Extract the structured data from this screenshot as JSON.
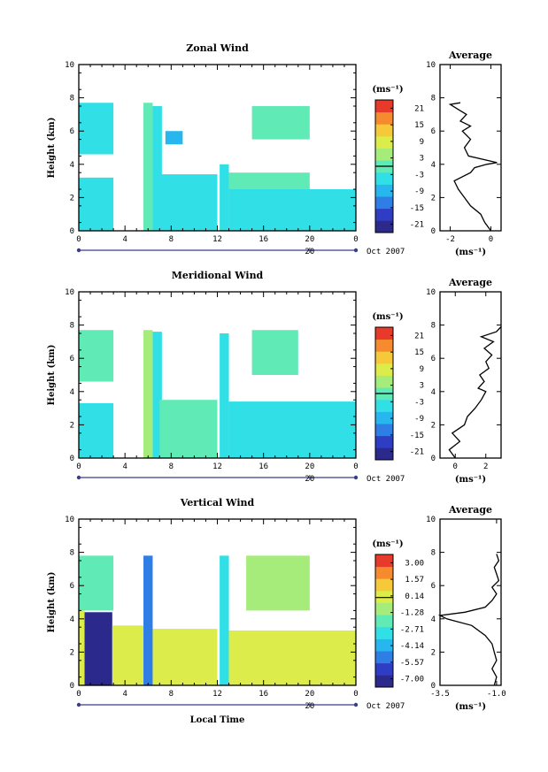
{
  "chart_data": [
    {
      "type": "heatmap",
      "title": "Zonal Wind",
      "ylabel": "Height (km)",
      "units": "(ms⁻¹)",
      "xlim": [
        0,
        24
      ],
      "ylim": [
        0,
        10
      ],
      "x_ticks": [
        "0",
        "4",
        "8",
        "12",
        "16",
        "20",
        "0"
      ],
      "y_ticks": [
        "0",
        "2",
        "4",
        "6",
        "8",
        "10"
      ],
      "date_tick": "20",
      "date_label": "Oct 2007",
      "colorbar_ticks": [
        "21",
        "15",
        "9",
        "3",
        "-3",
        "-9",
        "-15",
        "-21"
      ],
      "colorbar_range": [
        -24,
        24
      ],
      "blocks": [
        {
          "x0": 0,
          "x1": 3,
          "y0": 4.6,
          "y1": 7.7,
          "value": -4
        },
        {
          "x0": 0,
          "x1": 3,
          "y0": 0,
          "y1": 3.2,
          "value": -6
        },
        {
          "x0": 5.6,
          "x1": 6.4,
          "y0": 0,
          "y1": 7.7,
          "value": 1
        },
        {
          "x0": 6.4,
          "x1": 7.2,
          "y0": 0,
          "y1": 7.5,
          "value": -6
        },
        {
          "x0": 7,
          "x1": 12,
          "y0": 0,
          "y1": 3.4,
          "value": -5
        },
        {
          "x0": 7.5,
          "x1": 9,
          "y0": 5.2,
          "y1": 6,
          "value": -8
        },
        {
          "x0": 12.2,
          "x1": 13,
          "y0": 0,
          "y1": 4,
          "value": -4
        },
        {
          "x0": 13,
          "x1": 24,
          "y0": 0,
          "y1": 2.5,
          "value": -5
        },
        {
          "x0": 13,
          "x1": 20,
          "y0": 2.5,
          "y1": 3.5,
          "value": -1
        },
        {
          "x0": 15,
          "x1": 20,
          "y0": 5.5,
          "y1": 7.5,
          "value": -2
        }
      ],
      "average": {
        "title": "Average",
        "xlabel": "(ms⁻¹)",
        "xlim": [
          -2.5,
          0.5
        ],
        "x_ticks": [
          "-2",
          "0"
        ],
        "y_ticks": [
          "0",
          "2",
          "4",
          "6",
          "8",
          "10"
        ],
        "x": [
          0.0,
          -0.3,
          -0.5,
          -1.0,
          -1.3,
          -1.6,
          -1.8,
          -1.0,
          -0.8,
          -0.2,
          0.3,
          -1.1,
          -1.3,
          -1.0,
          -1.4,
          -1.0,
          -1.5,
          -1.2,
          -1.6,
          -2.0,
          -1.5
        ],
        "y": [
          0.0,
          0.5,
          1.0,
          1.5,
          2.0,
          2.5,
          3.0,
          3.5,
          3.8,
          4.0,
          4.1,
          4.5,
          5.0,
          5.5,
          6.0,
          6.3,
          6.6,
          7.0,
          7.3,
          7.6,
          7.7
        ]
      }
    },
    {
      "type": "heatmap",
      "title": "Meridional Wind",
      "ylabel": "Height (km)",
      "units": "(ms⁻¹)",
      "xlim": [
        0,
        24
      ],
      "ylim": [
        0,
        10
      ],
      "x_ticks": [
        "0",
        "4",
        "8",
        "12",
        "16",
        "20",
        "0"
      ],
      "y_ticks": [
        "0",
        "2",
        "4",
        "6",
        "8",
        "10"
      ],
      "date_tick": "20",
      "date_label": "Oct 2007",
      "colorbar_ticks": [
        "21",
        "15",
        "9",
        "3",
        "-3",
        "-9",
        "-15",
        "-21"
      ],
      "colorbar_range": [
        -24,
        24
      ],
      "blocks": [
        {
          "x0": 0,
          "x1": 3,
          "y0": 4.6,
          "y1": 7.7,
          "value": 2
        },
        {
          "x0": 0,
          "x1": 3,
          "y0": 0,
          "y1": 3.3,
          "value": -5
        },
        {
          "x0": 5.6,
          "x1": 6.4,
          "y0": 0,
          "y1": 7.7,
          "value": 6
        },
        {
          "x0": 6.4,
          "x1": 7.2,
          "y0": 0,
          "y1": 7.6,
          "value": -3
        },
        {
          "x0": 7,
          "x1": 12,
          "y0": 0,
          "y1": 3.5,
          "value": -1
        },
        {
          "x0": 12.2,
          "x1": 13,
          "y0": 0,
          "y1": 7.5,
          "value": -6
        },
        {
          "x0": 13,
          "x1": 24,
          "y0": 0,
          "y1": 3.4,
          "value": -6
        },
        {
          "x0": 15,
          "x1": 19,
          "y0": 5,
          "y1": 7.7,
          "value": 2
        }
      ],
      "average": {
        "title": "Average",
        "xlabel": "(ms⁻¹)",
        "xlim": [
          -1,
          3
        ],
        "x_ticks": [
          "0",
          "2"
        ],
        "y_ticks": [
          "0",
          "2",
          "4",
          "6",
          "8",
          "10"
        ],
        "x": [
          0.0,
          -0.4,
          0.3,
          -0.2,
          0.6,
          0.8,
          1.3,
          1.7,
          2.0,
          1.5,
          1.9,
          1.6,
          2.2,
          2.0,
          2.4,
          1.9,
          2.5,
          1.7,
          2.7,
          3.0
        ],
        "y": [
          0.0,
          0.5,
          1.0,
          1.5,
          2.0,
          2.5,
          3.0,
          3.5,
          4.0,
          4.2,
          4.6,
          5.0,
          5.4,
          5.8,
          6.2,
          6.6,
          7.0,
          7.3,
          7.6,
          7.9
        ]
      }
    },
    {
      "type": "heatmap",
      "title": "Vertical Wind",
      "ylabel": "Height (km)",
      "xlabel": "Local Time",
      "units": "(ms⁻¹)",
      "xlim": [
        0,
        24
      ],
      "ylim": [
        0,
        10
      ],
      "x_ticks": [
        "0",
        "4",
        "8",
        "12",
        "16",
        "20",
        "0"
      ],
      "y_ticks": [
        "0",
        "2",
        "4",
        "6",
        "8",
        "10"
      ],
      "date_tick": "20",
      "date_label": "Oct 2007",
      "colorbar_ticks": [
        "3.00",
        "1.57",
        "0.14",
        "-1.28",
        "-2.71",
        "-4.14",
        "-5.57",
        "-7.00"
      ],
      "colorbar_range": [
        -7.7,
        3.7
      ],
      "blocks": [
        {
          "x0": 0,
          "x1": 3,
          "y0": 4.5,
          "y1": 7.8,
          "value": -1.5
        },
        {
          "x0": 0,
          "x1": 0.5,
          "y0": 0,
          "y1": 4.5,
          "value": 0.3
        },
        {
          "x0": 0.5,
          "x1": 2.9,
          "y0": 0,
          "y1": 4.4,
          "value": -7.2
        },
        {
          "x0": 2.9,
          "x1": 5.6,
          "y0": 0,
          "y1": 3.6,
          "value": 0.5
        },
        {
          "x0": 5.6,
          "x1": 6.4,
          "y0": 0,
          "y1": 7.8,
          "value": -5
        },
        {
          "x0": 6.4,
          "x1": 12,
          "y0": 0,
          "y1": 3.4,
          "value": 0.4
        },
        {
          "x0": 12.2,
          "x1": 13,
          "y0": 0,
          "y1": 7.8,
          "value": -3.5
        },
        {
          "x0": 13,
          "x1": 24,
          "y0": 0,
          "y1": 3.3,
          "value": 0.4
        },
        {
          "x0": 14.5,
          "x1": 20,
          "y0": 4.5,
          "y1": 7.8,
          "value": -1.4
        }
      ],
      "average": {
        "title": "Average",
        "xlabel": "(ms⁻¹)",
        "xlim": [
          -3.5,
          -0.8
        ],
        "x_ticks": [
          "-3.5",
          "-1.0"
        ],
        "y_ticks": [
          "0",
          "2",
          "4",
          "6",
          "8",
          "10"
        ],
        "x": [
          -1.1,
          -1.0,
          -1.2,
          -1.0,
          -1.1,
          -1.2,
          -1.5,
          -2.1,
          -3.2,
          -3.5,
          -2.4,
          -1.5,
          -1.2,
          -1.0,
          -1.2,
          -0.9,
          -1.0,
          -1.1,
          -0.9,
          -1.0
        ],
        "y": [
          0.0,
          0.5,
          1.0,
          1.5,
          2.0,
          2.5,
          3.0,
          3.6,
          4.0,
          4.2,
          4.4,
          4.7,
          5.1,
          5.5,
          5.9,
          6.3,
          6.7,
          7.1,
          7.5,
          7.9
        ]
      }
    }
  ]
}
